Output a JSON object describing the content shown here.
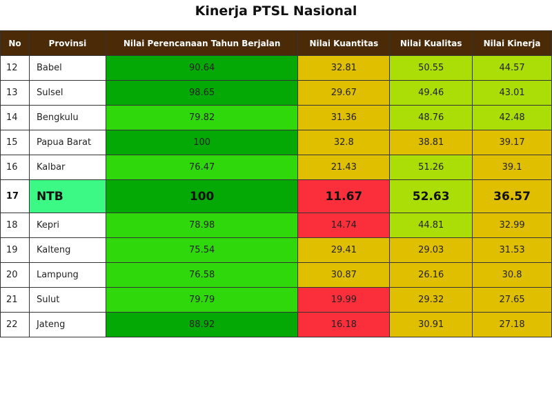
{
  "title": "Kinerja PTSL Nasional",
  "colors": {
    "header_bg": "#4b2a07",
    "dark_green": "#05a905",
    "bright_green": "#2ed80a",
    "yellow": "#e0bf00",
    "red": "#fb2e3b",
    "lime": "#aade06",
    "highlight_province": "#3cf884"
  },
  "chart_data": {
    "type": "table",
    "title": "Kinerja PTSL Nasional",
    "columns": [
      "No",
      "Provinsi",
      "Nilai Perencanaan Tahun Berjalan",
      "Nilai Kuantitas",
      "Nilai Kualitas",
      "Nilai Kinerja"
    ],
    "highlight_row": "17",
    "rows": [
      {
        "no": "12",
        "provinsi": "Babel",
        "perencanaan": "90.64",
        "kuantitas": "32.81",
        "kualitas": "50.55",
        "kinerja": "44.57",
        "colors": [
          "#05a905",
          "#e0bf00",
          "#aade06",
          "#aade06"
        ]
      },
      {
        "no": "13",
        "provinsi": "Sulsel",
        "perencanaan": "98.65",
        "kuantitas": "29.67",
        "kualitas": "49.46",
        "kinerja": "43.01",
        "colors": [
          "#05a905",
          "#e0bf00",
          "#aade06",
          "#aade06"
        ]
      },
      {
        "no": "14",
        "provinsi": "Bengkulu",
        "perencanaan": "79.82",
        "kuantitas": "31.36",
        "kualitas": "48.76",
        "kinerja": "42.48",
        "colors": [
          "#2ed80a",
          "#e0bf00",
          "#aade06",
          "#aade06"
        ]
      },
      {
        "no": "15",
        "provinsi": "Papua Barat",
        "perencanaan": "100",
        "kuantitas": "32.8",
        "kualitas": "38.81",
        "kinerja": "39.17",
        "colors": [
          "#05a905",
          "#e0bf00",
          "#e0bf00",
          "#e0bf00"
        ]
      },
      {
        "no": "16",
        "provinsi": "Kalbar",
        "perencanaan": "76.47",
        "kuantitas": "21.43",
        "kualitas": "51.26",
        "kinerja": "39.1",
        "colors": [
          "#2ed80a",
          "#e0bf00",
          "#aade06",
          "#e0bf00"
        ]
      },
      {
        "no": "17",
        "provinsi": "NTB",
        "perencanaan": "100",
        "kuantitas": "11.67",
        "kualitas": "52.63",
        "kinerja": "36.57",
        "colors": [
          "#05a905",
          "#fb2e3b",
          "#aade06",
          "#e0bf00"
        ]
      },
      {
        "no": "18",
        "provinsi": "Kepri",
        "perencanaan": "78.98",
        "kuantitas": "14.74",
        "kualitas": "44.81",
        "kinerja": "32.99",
        "colors": [
          "#2ed80a",
          "#fb2e3b",
          "#aade06",
          "#e0bf00"
        ]
      },
      {
        "no": "19",
        "provinsi": "Kalteng",
        "perencanaan": "75.54",
        "kuantitas": "29.41",
        "kualitas": "29.03",
        "kinerja": "31.53",
        "colors": [
          "#2ed80a",
          "#e0bf00",
          "#e0bf00",
          "#e0bf00"
        ]
      },
      {
        "no": "20",
        "provinsi": "Lampung",
        "perencanaan": "76.58",
        "kuantitas": "30.87",
        "kualitas": "26.16",
        "kinerja": "30.8",
        "colors": [
          "#2ed80a",
          "#e0bf00",
          "#e0bf00",
          "#e0bf00"
        ]
      },
      {
        "no": "21",
        "provinsi": "Sulut",
        "perencanaan": "79.79",
        "kuantitas": "19.99",
        "kualitas": "29.32",
        "kinerja": "27.65",
        "colors": [
          "#2ed80a",
          "#fb2e3b",
          "#e0bf00",
          "#e0bf00"
        ]
      },
      {
        "no": "22",
        "provinsi": "Jateng",
        "perencanaan": "88.92",
        "kuantitas": "16.18",
        "kualitas": "30.91",
        "kinerja": "27.18",
        "colors": [
          "#05a905",
          "#fb2e3b",
          "#e0bf00",
          "#e0bf00"
        ]
      }
    ]
  }
}
